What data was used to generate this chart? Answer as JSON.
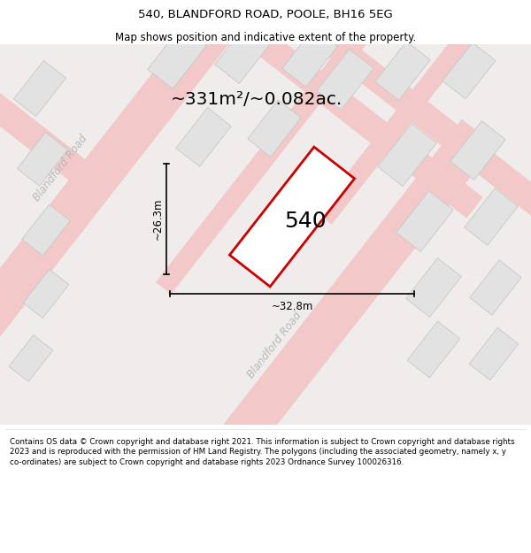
{
  "title": "540, BLANDFORD ROAD, POOLE, BH16 5EG",
  "subtitle": "Map shows position and indicative extent of the property.",
  "area_label": "~331m²/~0.082ac.",
  "plot_number": "540",
  "dim_width": "~32.8m",
  "dim_height": "~26.3m",
  "road_label_1": "Blandford Road",
  "road_label_2": "Blandford Road",
  "footer": "Contains OS data © Crown copyright and database right 2021. This information is subject to Crown copyright and database rights 2023 and is reproduced with the permission of HM Land Registry. The polygons (including the associated geometry, namely x, y co-ordinates) are subject to Crown copyright and database rights 2023 Ordnance Survey 100026316.",
  "map_bg": "#f0ecec",
  "road_color": "#f2c8c8",
  "building_color": "#e2e2e2",
  "building_edge": "#c8c8c8",
  "plot_color": "#ffffff",
  "plot_edge": "#cc0000",
  "header_bg": "white",
  "footer_bg": "white",
  "road_text_color": "#b8b8b8",
  "ang_deg": 52
}
